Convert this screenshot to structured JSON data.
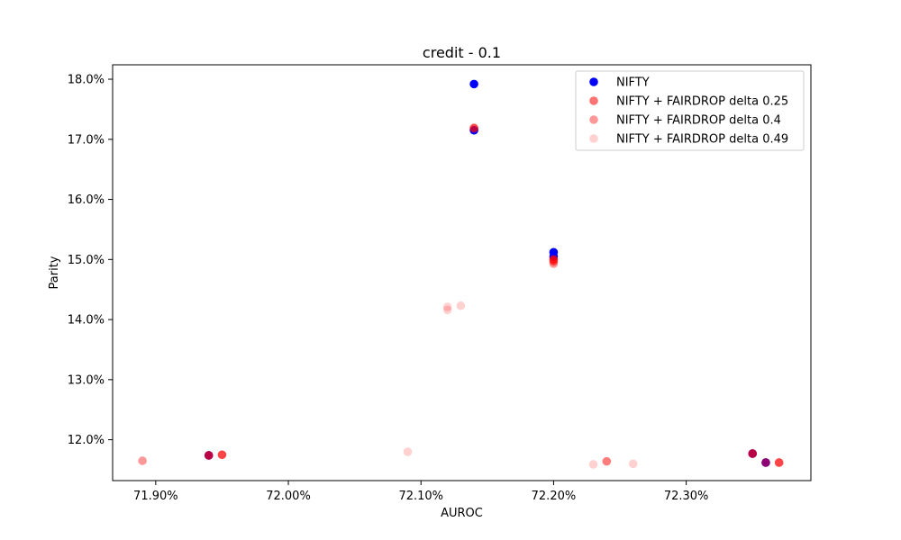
{
  "chart_data": {
    "type": "scatter",
    "title": "credit - 0.1",
    "xlabel": "AUROC",
    "ylabel": "Parity",
    "xlim": [
      71.8675,
      72.394
    ],
    "ylim": [
      11.32,
      18.24
    ],
    "x_ticks": [
      {
        "value": 71.9,
        "label": "71.90%"
      },
      {
        "value": 72.0,
        "label": "72.00%"
      },
      {
        "value": 72.1,
        "label": "72.10%"
      },
      {
        "value": 72.2,
        "label": "72.20%"
      },
      {
        "value": 72.3,
        "label": "72.30%"
      }
    ],
    "y_ticks": [
      {
        "value": 12.0,
        "label": "12.0%"
      },
      {
        "value": 13.0,
        "label": "13.0%"
      },
      {
        "value": 14.0,
        "label": "14.0%"
      },
      {
        "value": 15.0,
        "label": "15.0%"
      },
      {
        "value": 16.0,
        "label": "16.0%"
      },
      {
        "value": 17.0,
        "label": "17.0%"
      },
      {
        "value": 18.0,
        "label": "18.0%"
      }
    ],
    "grid": false,
    "legend_position": "top-right",
    "series": [
      {
        "name": "NIFTY",
        "color": "#0000ff",
        "opacity": 1.0,
        "points": [
          {
            "x": 72.14,
            "y": 17.92
          },
          {
            "x": 72.14,
            "y": 17.15
          },
          {
            "x": 72.2,
            "y": 15.12
          },
          {
            "x": 72.2,
            "y": 15.05
          },
          {
            "x": 71.94,
            "y": 11.74
          },
          {
            "x": 72.35,
            "y": 11.77
          },
          {
            "x": 72.36,
            "y": 11.62
          }
        ]
      },
      {
        "name": "NIFTY + FAIRDROP delta 0.25",
        "color": "#ff0000",
        "opacity": 0.55,
        "points": [
          {
            "x": 72.14,
            "y": 17.19
          },
          {
            "x": 72.2,
            "y": 15.0
          },
          {
            "x": 72.2,
            "y": 14.97
          },
          {
            "x": 71.94,
            "y": 11.74
          },
          {
            "x": 71.95,
            "y": 11.75
          },
          {
            "x": 72.35,
            "y": 11.77
          },
          {
            "x": 72.36,
            "y": 11.62
          },
          {
            "x": 72.37,
            "y": 11.62
          }
        ]
      },
      {
        "name": "NIFTY + FAIRDROP delta 0.4",
        "color": "#ff0000",
        "opacity": 0.4,
        "points": [
          {
            "x": 72.14,
            "y": 17.18
          },
          {
            "x": 72.2,
            "y": 14.93
          },
          {
            "x": 72.2,
            "y": 15.0
          },
          {
            "x": 71.89,
            "y": 11.65
          },
          {
            "x": 71.94,
            "y": 11.74
          },
          {
            "x": 71.95,
            "y": 11.75
          },
          {
            "x": 72.24,
            "y": 11.64
          },
          {
            "x": 72.35,
            "y": 11.77
          },
          {
            "x": 72.37,
            "y": 11.62
          }
        ]
      },
      {
        "name": "NIFTY + FAIRDROP delta 0.49",
        "color": "#ff0000",
        "opacity": 0.18,
        "points": [
          {
            "x": 72.12,
            "y": 14.21
          },
          {
            "x": 72.12,
            "y": 14.16
          },
          {
            "x": 72.13,
            "y": 14.23
          },
          {
            "x": 72.09,
            "y": 11.8
          },
          {
            "x": 72.23,
            "y": 11.59
          },
          {
            "x": 72.24,
            "y": 11.64
          },
          {
            "x": 72.26,
            "y": 11.6
          }
        ]
      }
    ]
  }
}
